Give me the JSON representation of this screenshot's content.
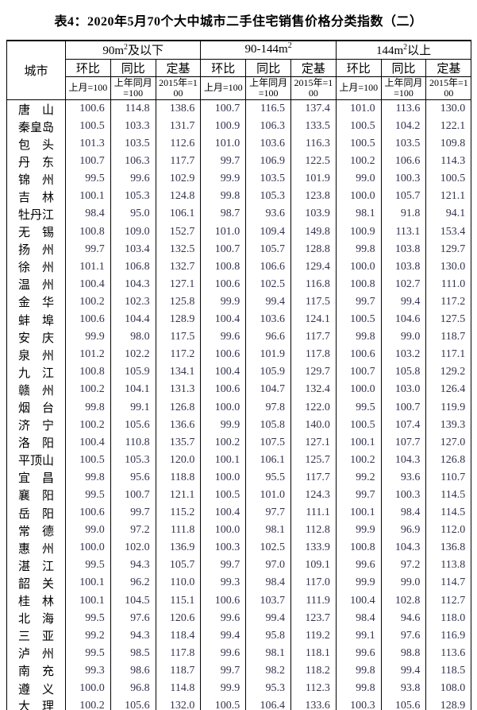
{
  "title": "表4：2020年5月70个大中城市二手住宅销售价格分类指数（二）",
  "table": {
    "city_header": "城市",
    "groups": [
      {
        "pre": "90m",
        "sup": "2",
        "post": "及以下"
      },
      {
        "pre": "90-144m",
        "sup": "2",
        "post": ""
      },
      {
        "pre": "144m",
        "sup": "2",
        "post": "以上"
      }
    ],
    "sub_headers": [
      "环比",
      "同比",
      "定基"
    ],
    "base_headers": [
      "上月=100",
      "上年同月=100",
      "2015年=100"
    ],
    "rows": [
      {
        "city": "唐　山",
        "values": [
          "100.6",
          "114.8",
          "138.6",
          "100.7",
          "116.5",
          "137.4",
          "101.0",
          "113.6",
          "130.0"
        ]
      },
      {
        "city": "秦皇岛",
        "values": [
          "100.5",
          "103.3",
          "131.7",
          "100.9",
          "106.3",
          "133.5",
          "100.5",
          "104.2",
          "122.1"
        ]
      },
      {
        "city": "包　头",
        "values": [
          "101.3",
          "103.5",
          "112.6",
          "101.0",
          "103.6",
          "116.3",
          "100.5",
          "103.5",
          "109.8"
        ]
      },
      {
        "city": "丹　东",
        "values": [
          "100.7",
          "106.3",
          "117.7",
          "99.7",
          "106.9",
          "122.5",
          "100.2",
          "106.6",
          "114.3"
        ]
      },
      {
        "city": "锦　州",
        "values": [
          "99.5",
          "99.6",
          "102.9",
          "99.9",
          "103.5",
          "101.9",
          "99.0",
          "100.3",
          "100.5"
        ]
      },
      {
        "city": "吉　林",
        "values": [
          "100.1",
          "105.3",
          "124.8",
          "99.8",
          "105.3",
          "123.8",
          "100.0",
          "105.7",
          "121.1"
        ]
      },
      {
        "city": "牡丹江",
        "values": [
          "98.4",
          "95.0",
          "106.1",
          "98.7",
          "93.6",
          "103.9",
          "98.1",
          "91.8",
          "94.1"
        ]
      },
      {
        "city": "无　锡",
        "values": [
          "100.8",
          "109.0",
          "152.7",
          "101.0",
          "109.4",
          "149.8",
          "100.9",
          "113.1",
          "153.4"
        ]
      },
      {
        "city": "扬　州",
        "values": [
          "99.7",
          "103.4",
          "132.5",
          "100.7",
          "105.7",
          "128.8",
          "99.8",
          "103.8",
          "129.7"
        ]
      },
      {
        "city": "徐　州",
        "values": [
          "101.1",
          "106.8",
          "132.7",
          "100.8",
          "106.6",
          "129.4",
          "100.0",
          "103.8",
          "130.0"
        ]
      },
      {
        "city": "温　州",
        "values": [
          "100.4",
          "104.3",
          "127.1",
          "100.6",
          "102.5",
          "116.8",
          "100.8",
          "102.7",
          "111.0"
        ]
      },
      {
        "city": "金　华",
        "values": [
          "100.2",
          "102.3",
          "125.8",
          "99.9",
          "99.4",
          "117.5",
          "99.7",
          "99.4",
          "117.2"
        ]
      },
      {
        "city": "蚌　埠",
        "values": [
          "100.6",
          "104.4",
          "128.9",
          "100.4",
          "103.6",
          "124.1",
          "100.5",
          "104.6",
          "127.5"
        ]
      },
      {
        "city": "安　庆",
        "values": [
          "99.9",
          "98.0",
          "117.5",
          "99.6",
          "96.6",
          "117.7",
          "99.8",
          "99.0",
          "118.7"
        ]
      },
      {
        "city": "泉　州",
        "values": [
          "101.2",
          "102.2",
          "117.2",
          "100.6",
          "101.9",
          "117.8",
          "100.6",
          "103.2",
          "117.1"
        ]
      },
      {
        "city": "九　江",
        "values": [
          "100.8",
          "105.9",
          "134.1",
          "100.4",
          "105.9",
          "129.7",
          "100.7",
          "105.8",
          "129.2"
        ]
      },
      {
        "city": "赣　州",
        "values": [
          "100.2",
          "104.1",
          "131.3",
          "100.6",
          "104.7",
          "132.4",
          "100.0",
          "103.0",
          "126.4"
        ]
      },
      {
        "city": "烟　台",
        "values": [
          "99.8",
          "99.1",
          "126.8",
          "100.0",
          "97.8",
          "122.0",
          "99.5",
          "100.7",
          "119.9"
        ]
      },
      {
        "city": "济　宁",
        "values": [
          "100.2",
          "105.6",
          "136.6",
          "99.9",
          "105.8",
          "140.0",
          "100.5",
          "107.4",
          "139.3"
        ]
      },
      {
        "city": "洛　阳",
        "values": [
          "100.4",
          "110.8",
          "135.7",
          "100.2",
          "107.5",
          "127.1",
          "100.1",
          "107.7",
          "127.0"
        ]
      },
      {
        "city": "平顶山",
        "values": [
          "100.5",
          "105.3",
          "120.0",
          "100.1",
          "106.1",
          "125.7",
          "100.2",
          "104.3",
          "126.8"
        ]
      },
      {
        "city": "宜　昌",
        "values": [
          "99.8",
          "95.6",
          "118.8",
          "100.0",
          "95.5",
          "117.7",
          "99.2",
          "93.6",
          "110.7"
        ]
      },
      {
        "city": "襄　阳",
        "values": [
          "99.5",
          "100.7",
          "121.1",
          "100.5",
          "101.0",
          "124.3",
          "99.7",
          "100.3",
          "114.5"
        ]
      },
      {
        "city": "岳　阳",
        "values": [
          "100.6",
          "99.7",
          "115.2",
          "100.4",
          "97.7",
          "111.1",
          "100.1",
          "98.4",
          "114.5"
        ]
      },
      {
        "city": "常　德",
        "values": [
          "99.0",
          "97.2",
          "111.8",
          "100.0",
          "98.1",
          "112.8",
          "99.9",
          "96.9",
          "112.0"
        ]
      },
      {
        "city": "惠　州",
        "values": [
          "100.0",
          "102.0",
          "136.9",
          "100.3",
          "102.5",
          "133.9",
          "100.8",
          "104.3",
          "136.8"
        ]
      },
      {
        "city": "湛　江",
        "values": [
          "99.5",
          "94.3",
          "105.7",
          "99.7",
          "97.0",
          "109.1",
          "99.6",
          "97.2",
          "113.8"
        ]
      },
      {
        "city": "韶　关",
        "values": [
          "100.1",
          "96.2",
          "110.0",
          "99.3",
          "98.4",
          "117.0",
          "99.9",
          "99.0",
          "114.7"
        ]
      },
      {
        "city": "桂　林",
        "values": [
          "100.1",
          "104.5",
          "115.1",
          "100.6",
          "103.7",
          "111.9",
          "100.4",
          "102.8",
          "112.7"
        ]
      },
      {
        "city": "北　海",
        "values": [
          "99.5",
          "97.6",
          "120.6",
          "99.6",
          "99.4",
          "123.7",
          "98.4",
          "94.6",
          "118.0"
        ]
      },
      {
        "city": "三　亚",
        "values": [
          "99.2",
          "94.3",
          "118.4",
          "99.4",
          "95.8",
          "119.2",
          "99.1",
          "97.6",
          "116.9"
        ]
      },
      {
        "city": "泸　州",
        "values": [
          "99.5",
          "98.5",
          "117.8",
          "99.6",
          "98.1",
          "118.1",
          "99.6",
          "98.8",
          "113.6"
        ]
      },
      {
        "city": "南　充",
        "values": [
          "99.3",
          "98.6",
          "118.7",
          "99.7",
          "98.2",
          "118.2",
          "99.8",
          "99.4",
          "118.5"
        ]
      },
      {
        "city": "遵　义",
        "values": [
          "100.0",
          "96.8",
          "114.8",
          "99.9",
          "95.3",
          "112.3",
          "99.8",
          "93.8",
          "108.0"
        ]
      },
      {
        "city": "大　理",
        "values": [
          "100.2",
          "105.6",
          "132.0",
          "100.5",
          "106.4",
          "133.6",
          "100.3",
          "105.6",
          "128.9"
        ]
      }
    ]
  }
}
